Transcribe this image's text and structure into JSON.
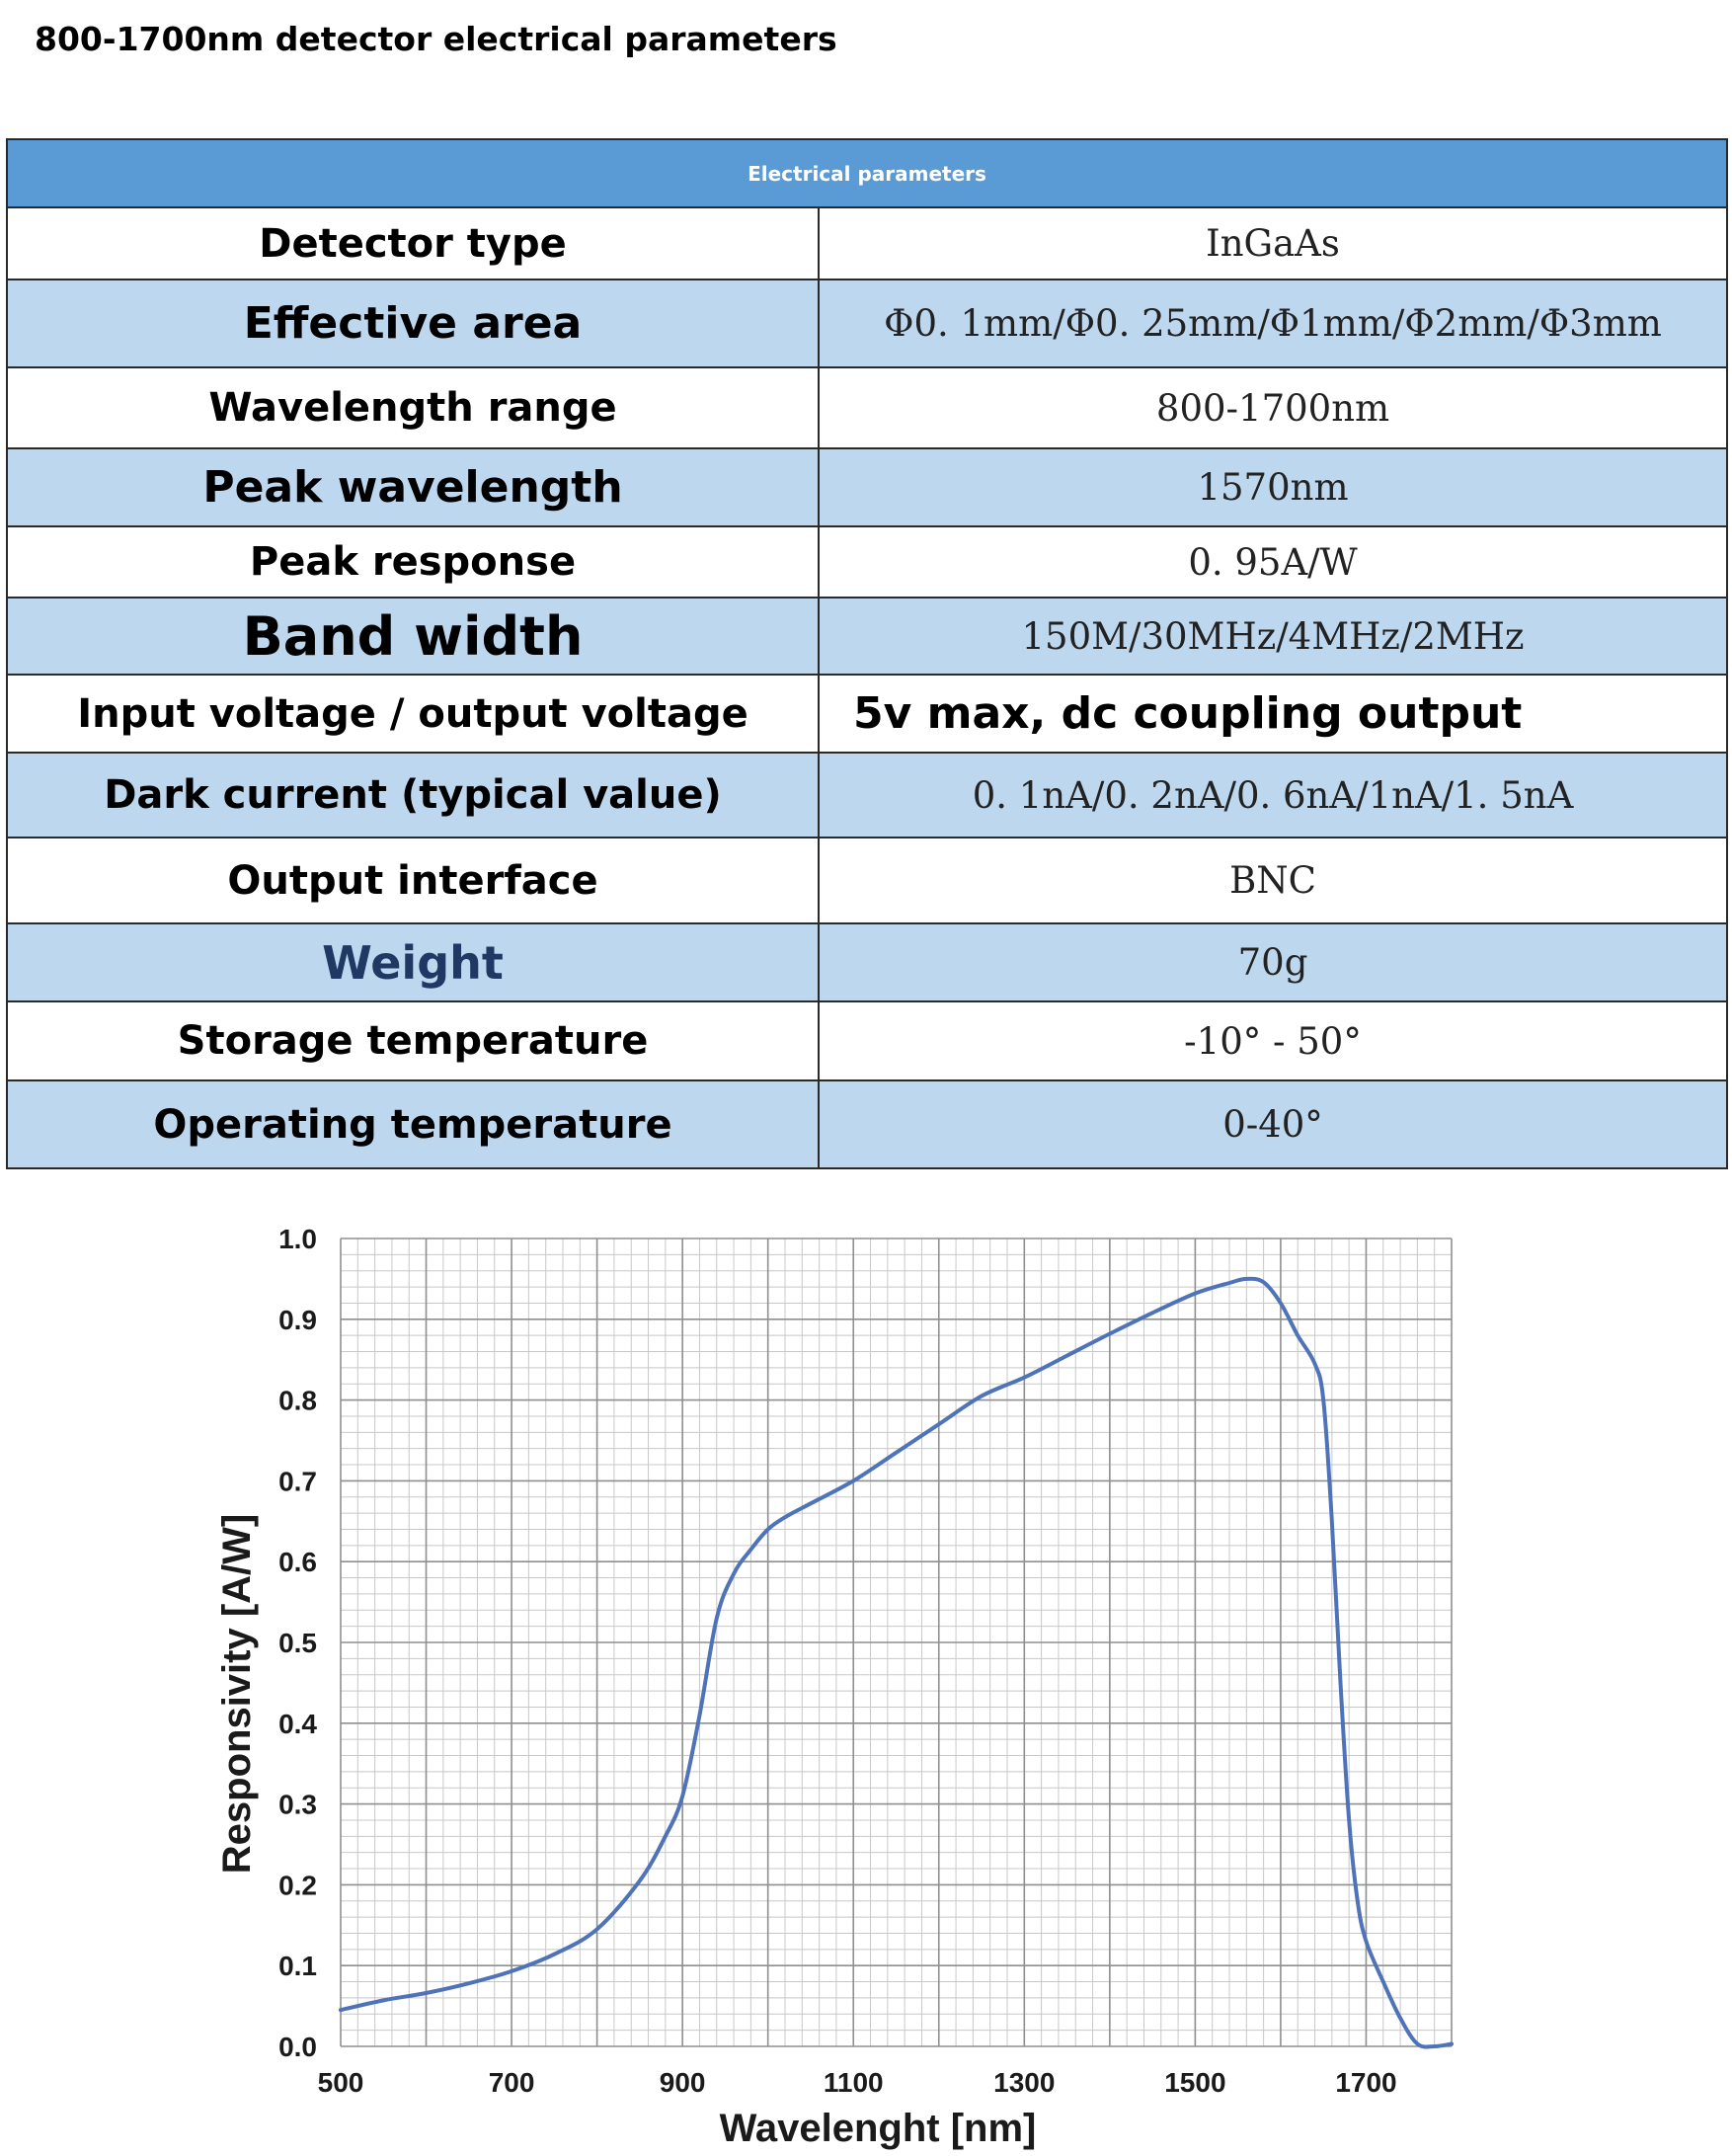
{
  "page_title": "800-1700nm detector electrical parameters",
  "table": {
    "header": "Electrical parameters",
    "rows": [
      {
        "label": "Detector type",
        "value": "InGaAs"
      },
      {
        "label": "Effective area",
        "value": "Φ0. 1mm/Φ0. 25mm/Φ1mm/Φ2mm/Φ3mm"
      },
      {
        "label": "Wavelength range",
        "value": "800-1700nm"
      },
      {
        "label": "Peak wavelength",
        "value": "1570nm"
      },
      {
        "label": "Peak response",
        "value": "0. 95A/W"
      },
      {
        "label": "Band width",
        "value": "150M/30MHz/4MHz/2MHz"
      },
      {
        "label": "Input voltage / output voltage",
        "value": "5v max, dc coupling output"
      },
      {
        "label": "Dark current (typical value)",
        "value": "0. 1nA/0. 2nA/0. 6nA/1nA/1. 5nA"
      },
      {
        "label": "Output interface",
        "value": "BNC"
      },
      {
        "label": "Weight",
        "value": "70g"
      },
      {
        "label": "Storage temperature",
        "value": "-10°  -  50°"
      },
      {
        "label": "Operating temperature",
        "value": "0-40°"
      }
    ]
  },
  "colors": {
    "header_bg": "#5b9bd5",
    "alt_row_bg": "#bdd7ee",
    "curve": "#4f73b8"
  },
  "chart_data": {
    "type": "line",
    "title": "",
    "xlabel": "Wavelenght [nm]",
    "ylabel": "Responsivity [A/W]",
    "xlim": [
      500,
      1800
    ],
    "ylim": [
      0,
      1.0
    ],
    "x_ticks": [
      "500",
      "700",
      "900",
      "1100",
      "1300",
      "1500",
      "1700"
    ],
    "y_ticks": [
      "0.0",
      "0.1",
      "0.2",
      "0.3",
      "0.4",
      "0.5",
      "0.6",
      "0.7",
      "0.8",
      "0.9",
      "1.0"
    ],
    "x_tick_values": [
      500,
      700,
      900,
      1100,
      1300,
      1500,
      1700
    ],
    "y_tick_values": [
      0,
      0.1,
      0.2,
      0.3,
      0.4,
      0.5,
      0.6,
      0.7,
      0.8,
      0.9,
      1.0
    ],
    "x_minor_step": 20,
    "y_minor_step": 0.02,
    "grid": true,
    "series": [
      {
        "name": "Responsivity",
        "x": [
          500,
          550,
          600,
          650,
          700,
          750,
          800,
          850,
          880,
          900,
          920,
          940,
          960,
          980,
          1000,
          1020,
          1050,
          1100,
          1150,
          1200,
          1250,
          1300,
          1350,
          1400,
          1450,
          1500,
          1540,
          1560,
          1580,
          1600,
          1620,
          1640,
          1650,
          1660,
          1670,
          1680,
          1690,
          1700,
          1720,
          1740,
          1760,
          1780,
          1800
        ],
        "values": [
          0.045,
          0.057,
          0.066,
          0.078,
          0.093,
          0.114,
          0.145,
          0.205,
          0.26,
          0.31,
          0.41,
          0.53,
          0.585,
          0.615,
          0.64,
          0.655,
          0.672,
          0.7,
          0.735,
          0.77,
          0.805,
          0.828,
          0.855,
          0.882,
          0.908,
          0.932,
          0.945,
          0.95,
          0.946,
          0.92,
          0.88,
          0.845,
          0.8,
          0.65,
          0.45,
          0.28,
          0.18,
          0.13,
          0.08,
          0.035,
          0.003,
          0.0,
          0.003
        ]
      }
    ]
  }
}
